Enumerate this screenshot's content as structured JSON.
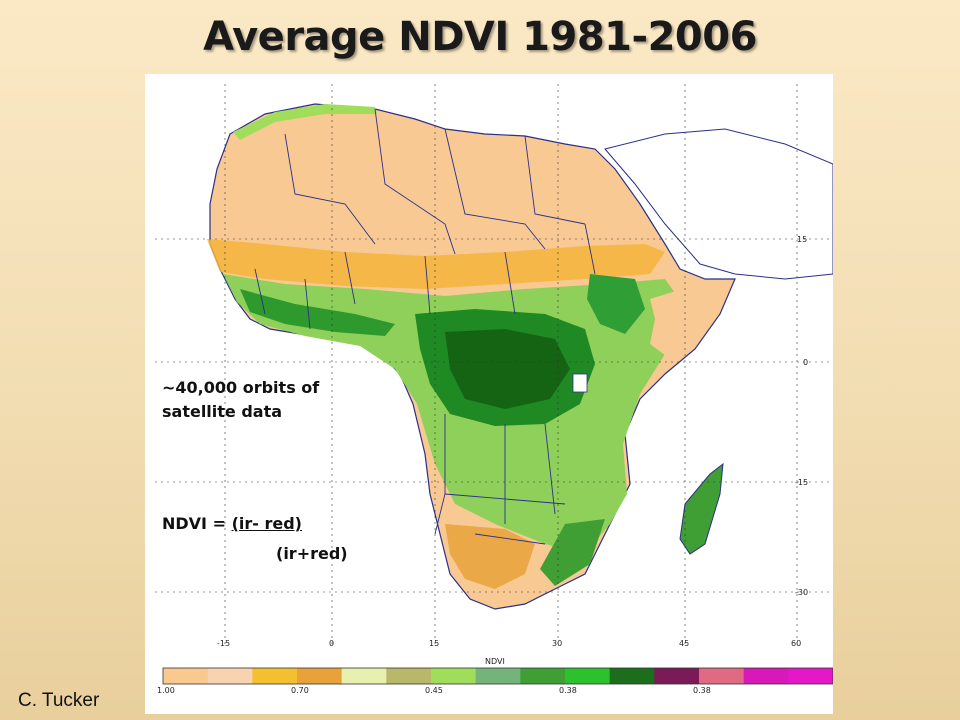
{
  "slide": {
    "title": "Average NDVI 1981-2006",
    "credit": "C. Tucker"
  },
  "annotations": {
    "orbits_line1": "~40,000 orbits of",
    "orbits_line2": "satellite data",
    "formula_lhs": "NDVI = ",
    "formula_numerator": "(ir- red)",
    "formula_denominator": "(ir+red)"
  },
  "map": {
    "region": "Africa",
    "lon_ticks": [
      "-15",
      "0",
      "15",
      "30",
      "45",
      "60"
    ],
    "lat_ticks": [
      "15",
      "0",
      "-15",
      "-30"
    ],
    "colorbar": {
      "title": "NDVI",
      "tick_labels": [
        "1.00",
        "0.70",
        "0.45",
        "0.38",
        "0.38",
        ""
      ],
      "colors": [
        "#f9c990",
        "#f7d3b0",
        "#f5c030",
        "#e9a23a",
        "#e8f0b0",
        "#b9b86a",
        "#9fdd5a",
        "#74b37a",
        "#3f9e34",
        "#2cc22c",
        "#1c6e1c",
        "#7a1a56",
        "#e06a82",
        "#d818b8",
        "#e418c8"
      ]
    }
  }
}
